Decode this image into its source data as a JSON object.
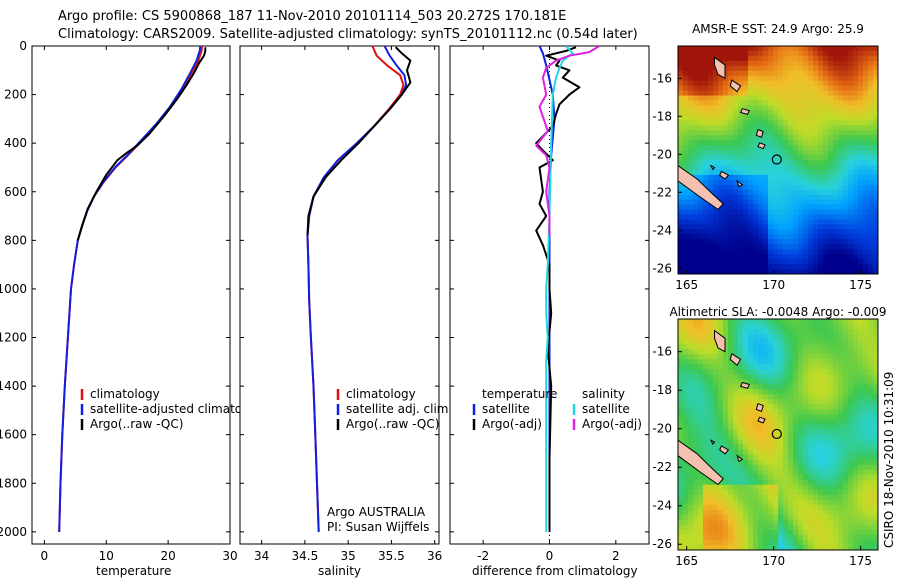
{
  "header": {
    "line1": "Argo profile: CS 5900868_187 11-Nov-2010 20101114_503 20.272S 170.181E",
    "line2": "Climatology: CARS2009. Satellite-adjusted climatology: synTS_20101112.nc (0.54d later)"
  },
  "footer": {
    "credit": "CSIRO 18-Nov-2010 10:31:09"
  },
  "colors": {
    "clim": "#e01010",
    "sat": "#1020e0",
    "argo": "#000000",
    "salsat": "#20d8e0",
    "salargo": "#e020e0"
  },
  "chart_data": [
    {
      "type": "line",
      "panel": "temperature",
      "xlabel": "temperature",
      "ylabel": "",
      "xlim": [
        -2,
        30
      ],
      "ylim": [
        2050,
        0
      ],
      "xticks": [
        0,
        10,
        20,
        30
      ],
      "yticks": [
        0,
        200,
        400,
        600,
        800,
        1000,
        1200,
        1400,
        1600,
        1800,
        2000
      ],
      "legend": {
        "position": "lower-left",
        "entries": [
          "climatology",
          "satellite-adjusted climatology",
          "Argo(..raw -QC)"
        ]
      },
      "series": [
        {
          "name": "climatology",
          "color": "clim",
          "points": [
            [
              25.5,
              0
            ],
            [
              25.4,
              20
            ],
            [
              24.9,
              60
            ],
            [
              23.8,
              110
            ],
            [
              22.3,
              180
            ],
            [
              20.5,
              250
            ],
            [
              18.3,
              320
            ],
            [
              15.8,
              390
            ],
            [
              13.5,
              450
            ],
            [
              11.5,
              500
            ],
            [
              9.6,
              560
            ],
            [
              8.0,
              620
            ],
            [
              6.9,
              680
            ],
            [
              6.1,
              740
            ],
            [
              5.4,
              800
            ],
            [
              4.8,
              900
            ],
            [
              4.3,
              1000
            ],
            [
              3.8,
              1200
            ],
            [
              3.3,
              1400
            ],
            [
              2.9,
              1600
            ],
            [
              2.6,
              1800
            ],
            [
              2.4,
              2000
            ]
          ]
        },
        {
          "name": "satellite-adjusted climatology",
          "color": "sat",
          "points": [
            [
              25.2,
              0
            ],
            [
              25.1,
              20
            ],
            [
              24.6,
              60
            ],
            [
              23.6,
              110
            ],
            [
              22.1,
              180
            ],
            [
              20.3,
              250
            ],
            [
              18.1,
              320
            ],
            [
              15.6,
              390
            ],
            [
              13.4,
              450
            ],
            [
              11.4,
              500
            ],
            [
              9.5,
              560
            ],
            [
              8.0,
              620
            ],
            [
              6.9,
              680
            ],
            [
              6.1,
              740
            ],
            [
              5.4,
              800
            ],
            [
              4.8,
              900
            ],
            [
              4.3,
              1000
            ],
            [
              3.8,
              1200
            ],
            [
              3.3,
              1400
            ],
            [
              2.9,
              1600
            ],
            [
              2.6,
              1800
            ],
            [
              2.4,
              2000
            ]
          ]
        },
        {
          "name": "Argo(..raw -QC)",
          "color": "argo",
          "points": [
            [
              26.0,
              5
            ],
            [
              26.0,
              20
            ],
            [
              25.8,
              40
            ],
            [
              25.0,
              70
            ],
            [
              24.2,
              110
            ],
            [
              23.0,
              160
            ],
            [
              21.4,
              220
            ],
            [
              19.3,
              290
            ],
            [
              17.0,
              360
            ],
            [
              15.0,
              410
            ],
            [
              13.3,
              440
            ],
            [
              11.8,
              470
            ],
            [
              10.0,
              530
            ],
            [
              8.4,
              600
            ],
            [
              7.0,
              670
            ],
            [
              6.1,
              740
            ],
            [
              5.4,
              800
            ]
          ]
        }
      ]
    },
    {
      "type": "line",
      "panel": "salinity",
      "xlabel": "salinity",
      "xlim": [
        33.75,
        36.05
      ],
      "ylim": [
        2050,
        0
      ],
      "xticks": [
        34,
        34.5,
        35,
        35.5,
        36
      ],
      "legend": {
        "position": "lower-center",
        "entries": [
          "climatology",
          "satellite adj. clim.",
          "Argo(..raw -QC)"
        ]
      },
      "annotation": [
        "Argo AUSTRALIA",
        "PI: Susan Wijffels"
      ],
      "series": [
        {
          "name": "climatology",
          "color": "clim",
          "points": [
            [
              35.28,
              0
            ],
            [
              35.33,
              40
            ],
            [
              35.45,
              80
            ],
            [
              35.6,
              120
            ],
            [
              35.64,
              160
            ],
            [
              35.6,
              200
            ],
            [
              35.47,
              260
            ],
            [
              35.3,
              330
            ],
            [
              35.1,
              400
            ],
            [
              34.88,
              470
            ],
            [
              34.72,
              540
            ],
            [
              34.6,
              620
            ],
            [
              34.55,
              700
            ],
            [
              34.53,
              780
            ],
            [
              34.54,
              900
            ],
            [
              34.55,
              1050
            ],
            [
              34.57,
              1200
            ],
            [
              34.6,
              1400
            ],
            [
              34.62,
              1600
            ],
            [
              34.64,
              1800
            ],
            [
              34.66,
              2000
            ]
          ]
        },
        {
          "name": "satellite adj. clim.",
          "color": "sat",
          "points": [
            [
              35.42,
              0
            ],
            [
              35.48,
              40
            ],
            [
              35.56,
              80
            ],
            [
              35.65,
              120
            ],
            [
              35.67,
              160
            ],
            [
              35.62,
              200
            ],
            [
              35.48,
              260
            ],
            [
              35.3,
              330
            ],
            [
              35.1,
              400
            ],
            [
              34.88,
              470
            ],
            [
              34.72,
              540
            ],
            [
              34.6,
              620
            ],
            [
              34.55,
              700
            ],
            [
              34.53,
              780
            ],
            [
              34.54,
              900
            ],
            [
              34.55,
              1050
            ],
            [
              34.57,
              1200
            ],
            [
              34.6,
              1400
            ],
            [
              34.62,
              1600
            ],
            [
              34.64,
              1800
            ],
            [
              34.66,
              2000
            ]
          ]
        },
        {
          "name": "Argo(..raw -QC)",
          "color": "argo",
          "points": [
            [
              35.55,
              5
            ],
            [
              35.62,
              30
            ],
            [
              35.72,
              60
            ],
            [
              35.68,
              100
            ],
            [
              35.72,
              150
            ],
            [
              35.62,
              200
            ],
            [
              35.48,
              260
            ],
            [
              35.3,
              330
            ],
            [
              35.12,
              400
            ],
            [
              34.92,
              470
            ],
            [
              34.74,
              540
            ],
            [
              34.6,
              620
            ],
            [
              34.54,
              700
            ],
            [
              34.53,
              780
            ]
          ]
        }
      ]
    },
    {
      "type": "line",
      "panel": "difference",
      "xlabel": "difference from climatology",
      "xlim": [
        -3,
        3
      ],
      "ylim": [
        2050,
        0
      ],
      "xticks": [
        -2,
        0,
        2
      ],
      "legend": {
        "position": "lower",
        "entries": [
          "temperature",
          "satellite",
          "Argo(-adj)",
          "salinity",
          "satellite",
          "Argo(-adj)"
        ]
      },
      "series": [
        {
          "name": "temperature satellite",
          "color": "sat",
          "points": [
            [
              -0.3,
              0
            ],
            [
              -0.2,
              30
            ],
            [
              -0.1,
              80
            ],
            [
              0.1,
              200
            ],
            [
              0.15,
              300
            ],
            [
              0.05,
              450
            ],
            [
              0,
              600
            ],
            [
              0,
              1000
            ],
            [
              0,
              1500
            ],
            [
              0,
              2000
            ]
          ]
        },
        {
          "name": "temperature Argo(-adj)",
          "color": "argo",
          "points": [
            [
              0.8,
              5
            ],
            [
              0.5,
              20
            ],
            [
              -0.1,
              40
            ],
            [
              0.3,
              60
            ],
            [
              0.2,
              80
            ],
            [
              0.6,
              100
            ],
            [
              0.4,
              130
            ],
            [
              0.9,
              170
            ],
            [
              0.6,
              200
            ],
            [
              0.3,
              240
            ],
            [
              0.2,
              280
            ],
            [
              0.1,
              330
            ],
            [
              -0.4,
              400
            ],
            [
              -0.2,
              430
            ],
            [
              0.1,
              470
            ],
            [
              -0.3,
              500
            ],
            [
              -0.2,
              600
            ],
            [
              -0.3,
              650
            ],
            [
              -0.1,
              700
            ],
            [
              -0.4,
              760
            ],
            [
              -0.2,
              820
            ],
            [
              0,
              900
            ],
            [
              0,
              1000
            ],
            [
              0.05,
              1100
            ],
            [
              -0.05,
              1250
            ],
            [
              0.05,
              1400
            ],
            [
              0,
              1700
            ],
            [
              0,
              2000
            ]
          ]
        },
        {
          "name": "salinity satellite",
          "color": "salsat",
          "points": [
            [
              0.5,
              0
            ],
            [
              0.7,
              30
            ],
            [
              0.4,
              60
            ],
            [
              0.3,
              90
            ],
            [
              0.2,
              130
            ],
            [
              0.1,
              200
            ],
            [
              0.05,
              400
            ],
            [
              0,
              700
            ],
            [
              -0.05,
              900
            ],
            [
              -0.1,
              1000
            ],
            [
              -0.1,
              1100
            ],
            [
              -0.05,
              1200
            ],
            [
              -0.1,
              1300
            ],
            [
              -0.1,
              1500
            ],
            [
              -0.1,
              2000
            ]
          ]
        },
        {
          "name": "salinity Argo(-adj)",
          "color": "salargo",
          "points": [
            [
              1.5,
              0
            ],
            [
              1.2,
              25
            ],
            [
              0.6,
              40
            ],
            [
              0.2,
              60
            ],
            [
              -0.1,
              90
            ],
            [
              -0.2,
              130
            ],
            [
              -0.1,
              200
            ],
            [
              -0.3,
              250
            ],
            [
              -0.05,
              350
            ],
            [
              -0.4,
              410
            ],
            [
              -0.1,
              450
            ],
            [
              0,
              500
            ],
            [
              -0.1,
              600
            ],
            [
              0,
              700
            ],
            [
              0,
              780
            ]
          ]
        }
      ]
    },
    {
      "type": "heatmap",
      "panel": "AMSR-E SST map",
      "title": "AMSR-E SST: 24.9 Argo: 25.9",
      "xlim": [
        164.5,
        176
      ],
      "ylim": [
        -26.3,
        -14.3
      ],
      "xticks": [
        165,
        170,
        175
      ],
      "yticks": [
        -16,
        -18,
        -20,
        -22,
        -24,
        -26
      ],
      "marker": {
        "lon": 170.181,
        "lat": -20.272
      }
    },
    {
      "type": "heatmap",
      "panel": "Altimetric SLA map",
      "title": "Altimetric SLA: -0.0048 Argo: -0.009",
      "xlim": [
        164.5,
        176
      ],
      "ylim": [
        -26.3,
        -14.3
      ],
      "xticks": [
        165,
        170,
        175
      ],
      "yticks": [
        -16,
        -18,
        -20,
        -22,
        -24,
        -26
      ],
      "marker": {
        "lon": 170.181,
        "lat": -20.272
      }
    }
  ]
}
